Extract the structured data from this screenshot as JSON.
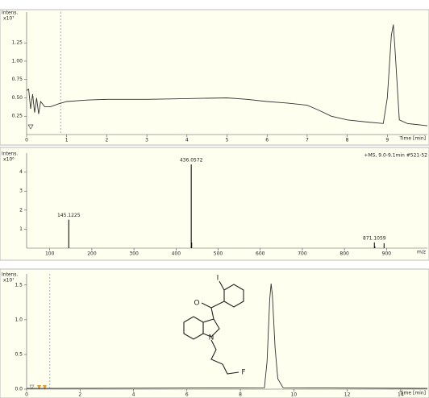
{
  "chart_data": [
    {
      "type": "line",
      "y_label": "Intens.",
      "y_unit": "x10⁷",
      "x_label": "Time [min]",
      "color": "#333333",
      "marker_x": 0.85,
      "x": [
        0,
        0.05,
        0.1,
        0.15,
        0.2,
        0.25,
        0.3,
        0.35,
        0.45,
        0.6,
        0.8,
        1,
        1.5,
        2,
        3,
        4,
        5,
        5.5,
        6,
        6.5,
        7,
        7.3,
        7.6,
        8,
        8.5,
        8.9,
        9.0,
        9.1,
        9.15,
        9.2,
        9.3,
        9.5,
        10
      ],
      "values": [
        0.6,
        0.62,
        0.35,
        0.55,
        0.3,
        0.5,
        0.28,
        0.45,
        0.38,
        0.38,
        0.42,
        0.45,
        0.47,
        0.48,
        0.48,
        0.49,
        0.5,
        0.48,
        0.45,
        0.43,
        0.4,
        0.33,
        0.25,
        0.2,
        0.17,
        0.15,
        0.5,
        1.35,
        1.5,
        1.1,
        0.2,
        0.15,
        0.12
      ],
      "xlim": [
        0,
        10
      ],
      "xticks": [
        0,
        1,
        2,
        3,
        4,
        5,
        6,
        7,
        8,
        9
      ],
      "ylim": [
        0,
        1.67
      ],
      "yticks": [
        {
          "value": 0.25,
          "label": "0.25"
        },
        {
          "value": 0.5,
          "label": "0.50"
        },
        {
          "value": 0.75,
          "label": "0.75"
        },
        {
          "value": 1,
          "label": "1.00"
        },
        {
          "value": 1.25,
          "label": "1.25"
        }
      ]
    },
    {
      "type": "stem",
      "y_label": "Intens.",
      "y_unit": "x10⁶",
      "x_label": "m/z",
      "title": "+MS, 9.0-9.1min #521-52",
      "color": "#111111",
      "x": [
        145.1225,
        436.0572,
        437.06,
        871.1059,
        872.1,
        894.1
      ],
      "values": [
        1.5,
        4.4,
        0.3,
        0.3,
        0.1,
        0.25
      ],
      "labeled": [
        true,
        true,
        false,
        true,
        false,
        false
      ],
      "xlim": [
        45,
        997
      ],
      "xticks": [
        100,
        200,
        300,
        400,
        500,
        600,
        700,
        800,
        900
      ],
      "ylim": [
        0,
        5
      ],
      "yticks": [
        1,
        2,
        3,
        4
      ]
    },
    {
      "type": "line",
      "y_label": "Intens.",
      "y_unit": "x10⁷",
      "x_label": "Time [min]",
      "color": "#333333",
      "marker_x": 0.87,
      "x": [
        0,
        0.8,
        8.9,
        9.0,
        9.1,
        9.15,
        9.2,
        9.3,
        9.4,
        9.6,
        15
      ],
      "values": [
        0.01,
        0.01,
        0.02,
        0.4,
        1.3,
        1.52,
        1.35,
        0.6,
        0.15,
        0.02,
        0.01
      ],
      "xlim": [
        0,
        15
      ],
      "xticks": [
        0,
        2,
        4,
        6,
        8,
        10,
        12,
        14
      ],
      "ylim": [
        0,
        1.66
      ],
      "yticks": [
        {
          "value": 0,
          "label": "0.0"
        },
        {
          "value": 0.5,
          "label": "0.5"
        },
        {
          "value": 1,
          "label": "1.0"
        },
        {
          "value": 1.5,
          "label": "1.5"
        }
      ],
      "structure_labels": [
        "O",
        "I",
        "N",
        "F"
      ]
    }
  ]
}
